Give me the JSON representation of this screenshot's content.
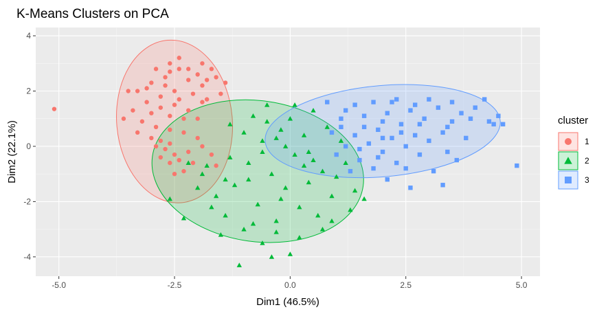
{
  "chart_data": {
    "type": "scatter",
    "title": "K-Means Clusters on PCA",
    "xlabel": "Dim1 (46.5%)",
    "ylabel": "Dim2 (22.1%)",
    "xlim": [
      -5.5,
      5.4
    ],
    "ylim": [
      -4.7,
      4.3
    ],
    "x_ticks": [
      -5.0,
      -2.5,
      0.0,
      2.5,
      5.0
    ],
    "x_tick_labels": [
      "-5.0",
      "-2.5",
      "0.0",
      "2.5",
      "5.0"
    ],
    "y_ticks": [
      -4,
      -2,
      0,
      2,
      4
    ],
    "y_tick_labels": [
      "-4",
      "-2",
      "0",
      "2",
      "4"
    ],
    "grid": true,
    "legend": {
      "title": "cluster",
      "position": "right"
    },
    "series": [
      {
        "name": "1",
        "color": "#F8766D",
        "shape": "circle",
        "ellipse": {
          "cx": -2.5,
          "cy": 0.9,
          "rx": 1.25,
          "ry": 2.95,
          "angle_deg": 5
        },
        "points": [
          [
            -5.1,
            1.35
          ],
          [
            -2.4,
            3.2
          ],
          [
            -2.9,
            2.8
          ],
          [
            -2.6,
            2.7
          ],
          [
            -3.0,
            2.3
          ],
          [
            -2.7,
            2.2
          ],
          [
            -3.3,
            2.0
          ],
          [
            -2.5,
            2.0
          ],
          [
            -2.2,
            2.4
          ],
          [
            -2.0,
            2.6
          ],
          [
            -1.8,
            1.7
          ],
          [
            -1.9,
            2.2
          ],
          [
            -1.7,
            2.8
          ],
          [
            -1.6,
            2.5
          ],
          [
            -1.5,
            1.9
          ],
          [
            -2.8,
            1.8
          ],
          [
            -3.1,
            1.6
          ],
          [
            -2.5,
            1.5
          ],
          [
            -2.2,
            1.3
          ],
          [
            -1.9,
            1.6
          ],
          [
            -3.4,
            1.3
          ],
          [
            -3.0,
            1.2
          ],
          [
            -2.6,
            1.1
          ],
          [
            -2.3,
            1.0
          ],
          [
            -2.0,
            1.0
          ],
          [
            -3.2,
            0.9
          ],
          [
            -2.9,
            0.7
          ],
          [
            -2.6,
            0.6
          ],
          [
            -2.3,
            0.5
          ],
          [
            -2.0,
            0.3
          ],
          [
            -3.3,
            0.5
          ],
          [
            -3.0,
            0.3
          ],
          [
            -2.8,
            0.2
          ],
          [
            -2.6,
            0.1
          ],
          [
            -2.9,
            0.0
          ],
          [
            -2.7,
            -0.1
          ],
          [
            -2.5,
            -0.3
          ],
          [
            -2.4,
            -0.5
          ],
          [
            -2.6,
            -0.6
          ],
          [
            -2.8,
            -0.4
          ],
          [
            -2.3,
            -0.9
          ],
          [
            -2.5,
            -1.0
          ],
          [
            -2.2,
            -0.2
          ],
          [
            -2.1,
            -0.6
          ],
          [
            -1.9,
            0.0
          ],
          [
            -1.7,
            -0.3
          ],
          [
            -1.6,
            -0.7
          ],
          [
            -2.7,
            2.5
          ],
          [
            -2.4,
            2.8
          ],
          [
            -3.1,
            2.1
          ],
          [
            -2.8,
            1.4
          ],
          [
            -2.4,
            1.7
          ],
          [
            -2.1,
            1.9
          ],
          [
            -1.8,
            2.4
          ],
          [
            -1.4,
            2.3
          ],
          [
            -3.5,
            2.0
          ],
          [
            -3.6,
            1.0
          ],
          [
            -2.2,
            2.8
          ],
          [
            -1.9,
            3.0
          ],
          [
            -2.6,
            3.0
          ]
        ]
      },
      {
        "name": "2",
        "color": "#00BA38",
        "shape": "triangle",
        "ellipse": {
          "cx": -0.7,
          "cy": -0.9,
          "rx": 2.3,
          "ry": 2.55,
          "angle_deg": -8
        },
        "points": [
          [
            -2.6,
            -1.9
          ],
          [
            -2.3,
            -2.6
          ],
          [
            -2.0,
            -1.5
          ],
          [
            -1.8,
            -0.7
          ],
          [
            -1.6,
            -1.8
          ],
          [
            -1.4,
            -2.5
          ],
          [
            -1.3,
            -0.4
          ],
          [
            -1.2,
            -1.4
          ],
          [
            -1.0,
            0.5
          ],
          [
            -1.0,
            -3.0
          ],
          [
            -0.9,
            -0.6
          ],
          [
            -0.8,
            1.1
          ],
          [
            -0.7,
            -2.1
          ],
          [
            -0.6,
            0.2
          ],
          [
            -0.6,
            -3.5
          ],
          [
            -0.5,
            0.9
          ],
          [
            -0.4,
            -1.0
          ],
          [
            -0.3,
            0.3
          ],
          [
            -0.3,
            -2.7
          ],
          [
            -0.2,
            0.6
          ],
          [
            -0.1,
            -1.5
          ],
          [
            0.0,
            1.0
          ],
          [
            0.0,
            -3.9
          ],
          [
            0.1,
            -0.3
          ],
          [
            0.2,
            -2.2
          ],
          [
            0.3,
            0.4
          ],
          [
            0.4,
            -1.3
          ],
          [
            0.5,
            -0.5
          ],
          [
            0.6,
            -2.5
          ],
          [
            0.7,
            -0.9
          ],
          [
            0.8,
            0.7
          ],
          [
            0.9,
            -1.8
          ],
          [
            1.0,
            -1.1
          ],
          [
            1.2,
            -0.6
          ],
          [
            1.4,
            -1.6
          ],
          [
            -1.1,
            -4.3
          ],
          [
            -0.4,
            -4.0
          ],
          [
            0.2,
            -3.3
          ],
          [
            0.9,
            -2.7
          ],
          [
            1.3,
            -2.3
          ],
          [
            -1.5,
            -3.2
          ],
          [
            -0.8,
            -2.8
          ],
          [
            -0.2,
            -1.9
          ],
          [
            0.5,
            1.3
          ],
          [
            0.1,
            1.5
          ],
          [
            -0.5,
            1.5
          ],
          [
            -1.3,
            0.8
          ],
          [
            -1.9,
            -1.0
          ],
          [
            -1.7,
            -2.2
          ],
          [
            0.4,
            -0.2
          ],
          [
            1.1,
            0.2
          ],
          [
            -0.6,
            -0.2
          ],
          [
            -0.9,
            -1.2
          ],
          [
            -0.3,
            -3.1
          ],
          [
            0.7,
            -3.0
          ],
          [
            1.6,
            -1.9
          ],
          [
            -0.1,
            0.0
          ],
          [
            0.3,
            -0.7
          ],
          [
            -1.4,
            -1.2
          ],
          [
            -2.2,
            -0.6
          ]
        ]
      },
      {
        "name": "3",
        "color": "#619CFF",
        "shape": "square",
        "ellipse": {
          "cx": 2.0,
          "cy": 0.55,
          "rx": 2.55,
          "ry": 1.65,
          "angle_deg": 5
        },
        "points": [
          [
            0.8,
            1.6
          ],
          [
            0.9,
            0.5
          ],
          [
            1.0,
            -0.3
          ],
          [
            1.1,
            1.0
          ],
          [
            1.2,
            0.0
          ],
          [
            1.3,
            -0.9
          ],
          [
            1.4,
            1.5
          ],
          [
            1.4,
            0.4
          ],
          [
            1.5,
            -0.5
          ],
          [
            1.6,
            1.1
          ],
          [
            1.7,
            0.1
          ],
          [
            1.8,
            -0.8
          ],
          [
            1.8,
            1.6
          ],
          [
            1.9,
            0.6
          ],
          [
            2.0,
            -0.2
          ],
          [
            2.1,
            1.2
          ],
          [
            2.1,
            -1.2
          ],
          [
            2.2,
            0.3
          ],
          [
            2.3,
            1.7
          ],
          [
            2.3,
            -0.6
          ],
          [
            2.4,
            0.8
          ],
          [
            2.5,
            0.0
          ],
          [
            2.6,
            1.3
          ],
          [
            2.6,
            -1.5
          ],
          [
            2.7,
            0.4
          ],
          [
            2.8,
            -0.3
          ],
          [
            2.9,
            1.0
          ],
          [
            3.0,
            0.2
          ],
          [
            3.1,
            -0.9
          ],
          [
            3.2,
            1.4
          ],
          [
            3.3,
            0.5
          ],
          [
            3.4,
            -0.2
          ],
          [
            3.5,
            1.6
          ],
          [
            3.5,
            0.9
          ],
          [
            3.6,
            -0.5
          ],
          [
            3.7,
            1.2
          ],
          [
            3.8,
            0.3
          ],
          [
            4.0,
            1.4
          ],
          [
            4.2,
            1.7
          ],
          [
            4.3,
            0.9
          ],
          [
            4.4,
            0.8
          ],
          [
            4.5,
            1.1
          ],
          [
            4.6,
            0.8
          ],
          [
            4.9,
            -0.7
          ],
          [
            3.3,
            -1.4
          ],
          [
            1.6,
            0.7
          ],
          [
            2.0,
            0.9
          ],
          [
            2.4,
            0.5
          ],
          [
            2.8,
            0.8
          ],
          [
            1.5,
            -0.1
          ],
          [
            1.9,
            -0.4
          ],
          [
            2.2,
            1.6
          ],
          [
            3.0,
            1.7
          ],
          [
            1.2,
            1.3
          ],
          [
            2.5,
            -0.8
          ],
          [
            3.9,
            1.0
          ],
          [
            1.1,
            0.7
          ],
          [
            2.7,
            1.5
          ],
          [
            3.4,
            0.7
          ],
          [
            2.0,
            0.3
          ]
        ]
      }
    ]
  }
}
